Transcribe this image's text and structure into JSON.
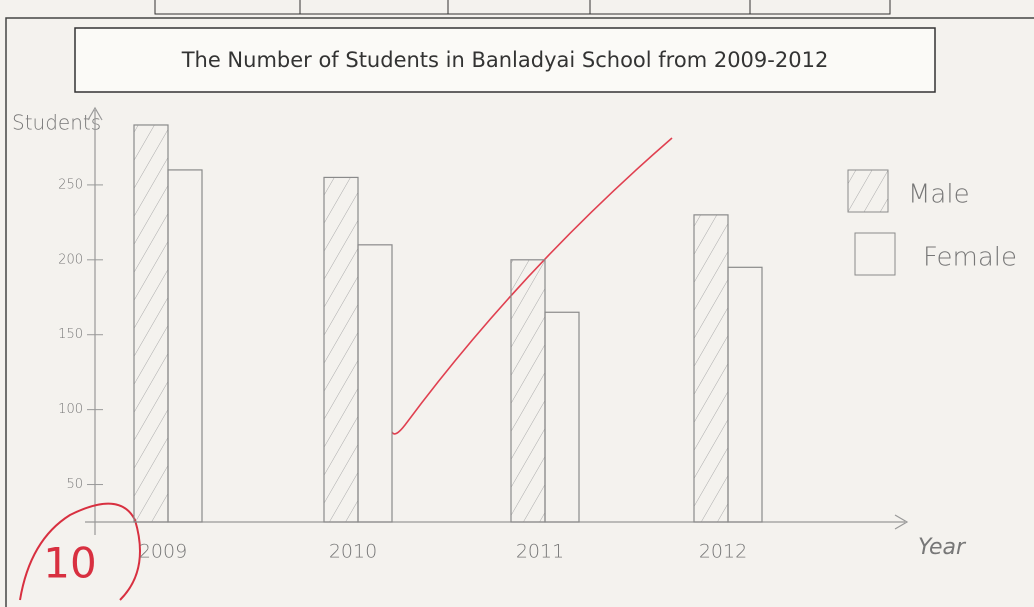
{
  "chart_data": {
    "type": "bar",
    "title": "The Number of Students in Banladyai School from 2009-2012",
    "y_label": "Students",
    "x_label": "Year",
    "categories": [
      "2009",
      "2010",
      "2011",
      "2012"
    ],
    "series": [
      {
        "name": "Male",
        "color": "#8a8a8a",
        "pattern": "hatch",
        "values": [
          290,
          255,
          200,
          230
        ]
      },
      {
        "name": "Female",
        "color": "#8a8a8a",
        "pattern": "none",
        "values": [
          260,
          210,
          165,
          195
        ]
      }
    ],
    "ylim": [
      25,
      300
    ],
    "yticks": [
      50,
      100,
      150,
      200,
      250
    ],
    "annotation": "10"
  }
}
